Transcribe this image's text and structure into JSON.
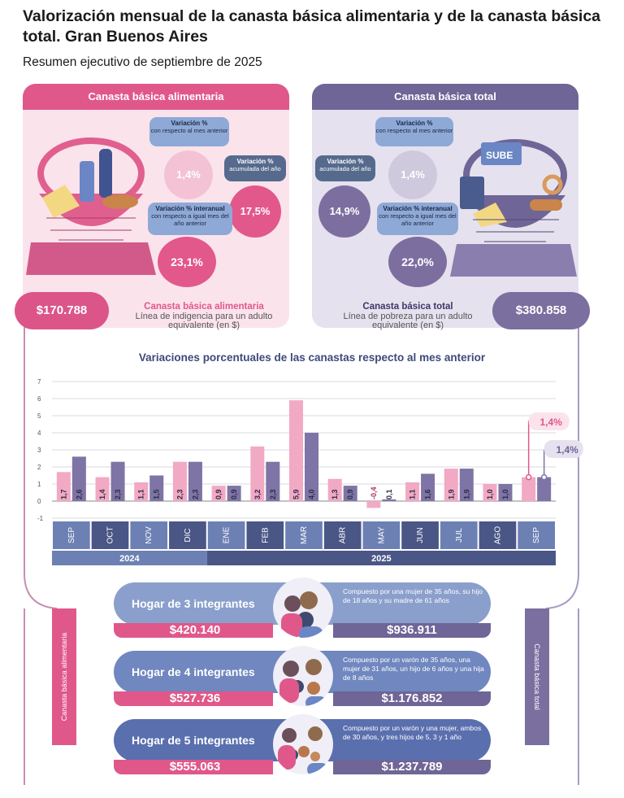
{
  "title": "Valorización mensual de la canasta básica alimentaria y de la canasta básica total. Gran Buenos Aires",
  "subtitle": "Resumen ejecutivo de septiembre de 2025",
  "cba": {
    "header": "Canasta básica alimentaria",
    "mensual_label": "Variación %",
    "mensual_desc": "con respecto al mes anterior",
    "mensual_value": "1,4%",
    "acumulada_label": "Variación %",
    "acumulada_desc": "acumulada del año",
    "acumulada_value": "17,5%",
    "interanual_label": "Variación % interanual",
    "interanual_desc": "con respecto a igual mes del año anterior",
    "interanual_value": "23,1%",
    "cost": "$170.788",
    "cost_title": "Canasta básica alimentaria",
    "cost_desc": "Línea de indigencia para un adulto equivalente (en $)"
  },
  "cbt": {
    "header": "Canasta básica total",
    "mensual_label": "Variación %",
    "mensual_desc": "con respecto al mes anterior",
    "mensual_value": "1,4%",
    "acumulada_label": "Variación %",
    "acumulada_desc": "acumulada del año",
    "acumulada_value": "14,9%",
    "interanual_label": "Variación % interanual",
    "interanual_desc": "con respecto a igual mes del año anterior",
    "interanual_value": "22,0%",
    "cost": "$380.858",
    "cost_title": "Canasta básica total",
    "cost_desc": "Línea de pobreza para un adulto equivalente (en $)",
    "sube": "SUBE"
  },
  "chart_data": {
    "type": "bar",
    "title": "Variaciones porcentuales de las canastas respecto al mes anterior",
    "categories": [
      "SEP",
      "OCT",
      "NOV",
      "DIC",
      "ENE",
      "FEB",
      "MAR",
      "ABR",
      "MAY",
      "JUN",
      "JUL",
      "AGO",
      "SEP"
    ],
    "year_groups": [
      {
        "label": "2024",
        "count": 4
      },
      {
        "label": "2025",
        "count": 9
      }
    ],
    "series": [
      {
        "values": [
          1.7,
          1.4,
          1.1,
          2.3,
          0.9,
          3.2,
          5.9,
          1.3,
          -0.4,
          1.1,
          1.9,
          1.0,
          1.4
        ],
        "labels": [
          "1,7",
          "1,4",
          "1,1",
          "2,3",
          "0,9",
          "3,2",
          "5,9",
          "1,3",
          "-0,4",
          "1,1",
          "1,9",
          "1,0",
          ""
        ],
        "color": "#f2a9c4"
      },
      {
        "values": [
          2.6,
          2.3,
          1.5,
          2.3,
          0.9,
          2.3,
          4.0,
          0.9,
          0.1,
          1.6,
          1.9,
          1.0,
          1.4
        ],
        "labels": [
          "2,6",
          "2,3",
          "1,5",
          "2,3",
          "0,9",
          "2,3",
          "4,0",
          "0,9",
          "0,1",
          "1,6",
          "1,9",
          "1,0",
          ""
        ],
        "color": "#7e74a5"
      }
    ],
    "ylim": [
      -1,
      7
    ],
    "yticks": [
      -1,
      0,
      1,
      2,
      3,
      4,
      5,
      6,
      7
    ],
    "grid": true,
    "callouts": [
      "1,4%",
      "1,4%"
    ]
  },
  "households": [
    {
      "name": "Hogar de 3 integrantes",
      "desc": "Compuesto por una mujer de 35 años, su hijo de 18 años y su madre de 61 años",
      "cba": "$420.140",
      "cbt": "$936.911"
    },
    {
      "name": "Hogar de 4 integrantes",
      "desc": "Compuesto por un varón de 35 años, una mujer de 31 años, un hijo de 6 años y una hija de 8 años",
      "cba": "$527.736",
      "cbt": "$1.176.852"
    },
    {
      "name": "Hogar de 5 integrantes",
      "desc": "Compuesto por un varón y una mujer, ambos de 30 años, y tres hijos de 5, 3 y 1 año",
      "cba": "$555.063",
      "cbt": "$1.237.789"
    }
  ],
  "side_left": "Canasta básica alimentaria",
  "side_right": "Canasta básica total",
  "colors": {
    "pink": "#e0588a",
    "purple": "#6f6596",
    "light_pink": "#f2a9c4",
    "axis_blue": "#6c80b4",
    "axis_dark": "#4a5686"
  }
}
